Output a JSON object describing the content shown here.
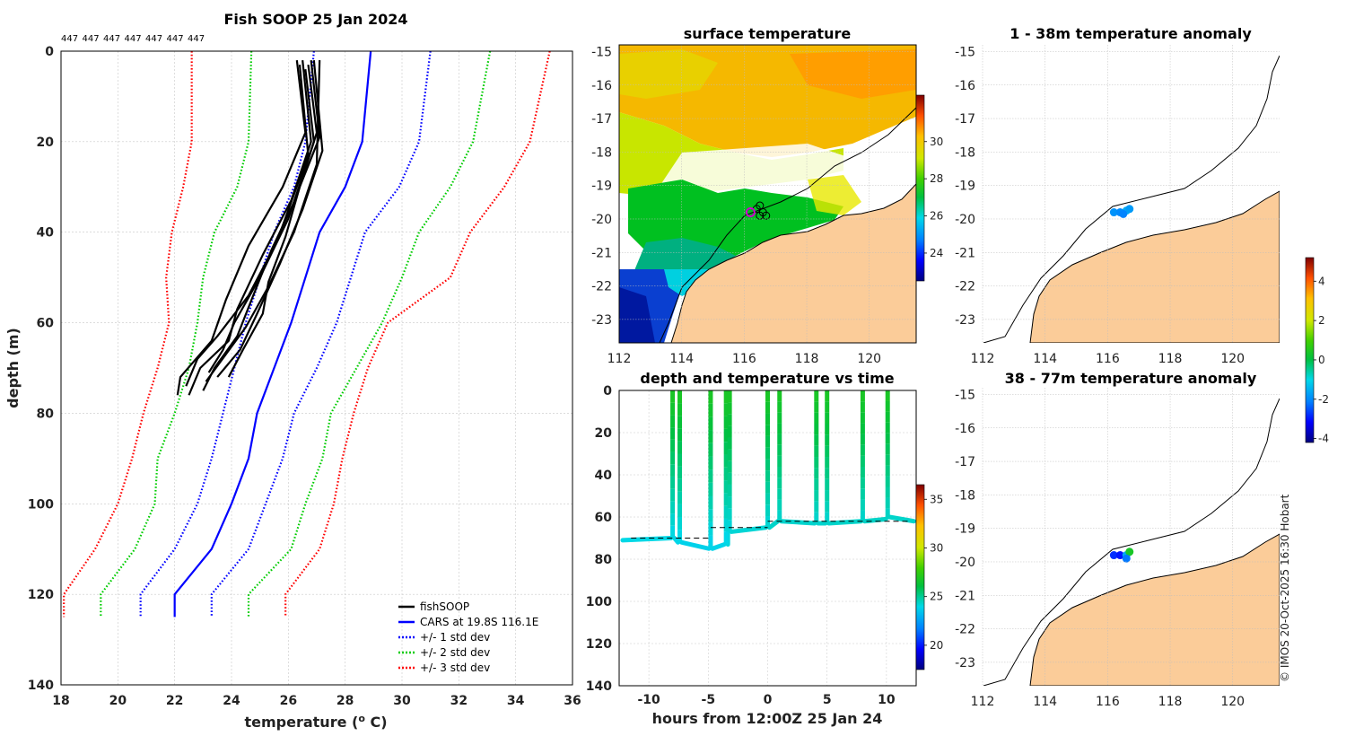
{
  "chart_data": [
    {
      "type": "line",
      "title": "Fish SOOP 25 Jan 2024",
      "top_labels": [
        "447",
        "447",
        "447",
        "447",
        "447",
        "447",
        "447"
      ],
      "xlabel": "temperature (",
      "xlabel_sup": "o",
      "xlabel_end": " C)",
      "ylabel": "depth (m)",
      "xlim": [
        18,
        36
      ],
      "ylim": [
        0,
        140
      ],
      "xticks": [
        18,
        20,
        22,
        24,
        26,
        28,
        30,
        32,
        34,
        36
      ],
      "yticks": [
        0,
        20,
        40,
        60,
        80,
        100,
        120,
        140
      ],
      "depths": [
        0,
        20,
        30,
        40,
        50,
        60,
        70,
        80,
        90,
        100,
        110,
        120,
        125
      ],
      "series": [
        {
          "name": "CARS at 19.8S 116.1E",
          "color": "#0000ff",
          "style": "solid",
          "temps": [
            28.9,
            28.6,
            28.0,
            27.1,
            26.6,
            26.1,
            25.5,
            24.9,
            24.6,
            24.0,
            23.3,
            22.0,
            22.0
          ]
        },
        {
          "name": "+/- 1 std dev",
          "color": "#0000ff",
          "style": "dotted",
          "temps": [
            26.9,
            26.6,
            26.2,
            25.5,
            25.0,
            24.5,
            24.1,
            23.7,
            23.3,
            22.8,
            22.0,
            20.8,
            20.8
          ]
        },
        {
          "name": "+/- 1 std dev",
          "color": "#0000ff",
          "style": "dotted",
          "temps": [
            31.0,
            30.6,
            29.9,
            28.7,
            28.2,
            27.7,
            27.0,
            26.2,
            25.8,
            25.2,
            24.6,
            23.3,
            23.3
          ]
        },
        {
          "name": "+/- 2 std dev",
          "color": "#00cc00",
          "style": "dotted",
          "temps": [
            24.7,
            24.6,
            24.2,
            23.4,
            23.0,
            22.8,
            22.5,
            22.0,
            21.4,
            21.3,
            20.6,
            19.4,
            19.4
          ]
        },
        {
          "name": "+/- 2 std dev",
          "color": "#00cc00",
          "style": "dotted",
          "temps": [
            33.1,
            32.5,
            31.7,
            30.6,
            30.0,
            29.3,
            28.4,
            27.5,
            27.2,
            26.6,
            26.1,
            24.6,
            24.6
          ]
        },
        {
          "name": "+/- 3 std dev",
          "color": "#ff0000",
          "style": "dotted",
          "temps": [
            22.6,
            22.6,
            22.3,
            21.9,
            21.7,
            21.8,
            21.4,
            20.9,
            20.5,
            20.0,
            19.2,
            18.1,
            18.1
          ]
        },
        {
          "name": "+/- 3 std dev",
          "color": "#ff0000",
          "style": "dotted",
          "temps": [
            35.2,
            34.5,
            33.6,
            32.4,
            31.7,
            29.5,
            28.8,
            28.3,
            27.9,
            27.6,
            27.1,
            25.9,
            25.9
          ]
        }
      ],
      "fish_profiles": [
        [
          [
            26.3,
            2
          ],
          [
            26.6,
            18
          ],
          [
            25.8,
            30
          ],
          [
            24.6,
            43
          ],
          [
            23.8,
            55
          ],
          [
            23.3,
            64
          ],
          [
            22.2,
            72
          ],
          [
            22.1,
            76
          ]
        ],
        [
          [
            26.5,
            2
          ],
          [
            26.8,
            20
          ],
          [
            26.1,
            33
          ],
          [
            25.1,
            45
          ],
          [
            24.2,
            57
          ],
          [
            23.9,
            64
          ],
          [
            22.9,
            70
          ],
          [
            22.5,
            76
          ]
        ],
        [
          [
            26.7,
            3
          ],
          [
            27.0,
            18
          ],
          [
            26.3,
            32
          ],
          [
            25.4,
            44
          ],
          [
            24.7,
            55
          ],
          [
            24.2,
            63
          ],
          [
            23.4,
            70
          ],
          [
            23.0,
            75
          ]
        ],
        [
          [
            26.9,
            2
          ],
          [
            27.2,
            22
          ],
          [
            26.5,
            35
          ],
          [
            25.7,
            47
          ],
          [
            24.9,
            58
          ],
          [
            24.3,
            66
          ],
          [
            23.5,
            72
          ]
        ],
        [
          [
            27.1,
            2
          ],
          [
            27.0,
            25
          ],
          [
            26.2,
            40
          ],
          [
            25.3,
            52
          ],
          [
            24.5,
            61
          ],
          [
            23.8,
            67
          ],
          [
            23.1,
            73
          ]
        ],
        [
          [
            26.6,
            4
          ],
          [
            26.9,
            20
          ],
          [
            26.0,
            37
          ],
          [
            25.0,
            50
          ],
          [
            24.1,
            60
          ],
          [
            23.7,
            66
          ],
          [
            23.2,
            71
          ]
        ],
        [
          [
            26.4,
            3
          ],
          [
            26.7,
            23
          ],
          [
            25.6,
            42
          ],
          [
            24.6,
            54
          ],
          [
            23.5,
            63
          ],
          [
            22.8,
            68
          ],
          [
            22.4,
            74
          ]
        ],
        [
          [
            26.8,
            2
          ],
          [
            27.1,
            19
          ],
          [
            26.4,
            30
          ],
          [
            25.9,
            41
          ],
          [
            25.3,
            51
          ],
          [
            25.1,
            58
          ],
          [
            24.4,
            66
          ],
          [
            23.9,
            72
          ]
        ]
      ],
      "legend": [
        "fishSOOP",
        "CARS at 19.8S 116.1E",
        "+/- 1 std dev",
        "+/- 2 std dev",
        "+/- 3 std dev"
      ],
      "legend_colors": [
        "#000000",
        "#0000ff",
        "#0000ff",
        "#00cc00",
        "#ff0000"
      ]
    },
    {
      "type": "heatmap",
      "title": "surface temperature",
      "xlim": [
        112,
        121.5
      ],
      "ylim": [
        -23.7,
        -14.8
      ],
      "xticks": [
        112,
        114,
        116,
        118,
        120
      ],
      "yticks": [
        -15,
        -16,
        -17,
        -18,
        -19,
        -20,
        -21,
        -22,
        -23
      ],
      "colorbar": {
        "min": 22.5,
        "max": 32.5,
        "ticks": [
          24,
          26,
          28,
          30
        ]
      },
      "vessel_track": [
        [
          116.2,
          -19.8
        ],
        [
          116.4,
          -19.7
        ],
        [
          116.5,
          -19.6
        ],
        [
          116.6,
          -19.8
        ],
        [
          116.7,
          -19.9
        ],
        [
          116.5,
          -19.9
        ]
      ]
    },
    {
      "type": "scatter",
      "title": "depth and temperature vs time",
      "xlabel": "hours from 12:00Z 25 Jan 24",
      "xlim": [
        -12.5,
        12.5
      ],
      "ylim": [
        0,
        140
      ],
      "xticks": [
        -10,
        -5,
        0,
        5,
        10
      ],
      "yticks": [
        0,
        20,
        40,
        60,
        80,
        100,
        120,
        140
      ],
      "colorbar": {
        "min": 17.5,
        "max": 36.5,
        "ticks": [
          20,
          25,
          30,
          35
        ]
      },
      "bottom_dashes": [
        [
          -11.5,
          -4.8,
          70
        ],
        [
          -4.8,
          0,
          65
        ],
        [
          0,
          12,
          62
        ]
      ],
      "dive_times": [
        -8.0,
        -7.4,
        -4.8,
        -3.5,
        -3.2,
        0,
        1.0,
        4.1,
        5.0,
        8.0,
        10.1
      ],
      "bottom_depths": [
        70,
        72,
        75,
        73,
        67,
        65,
        62,
        63,
        63,
        62,
        61
      ]
    },
    {
      "type": "scatter",
      "title": "1 - 38m temperature anomaly",
      "xlim": [
        112,
        121.5
      ],
      "ylim": [
        -23.7,
        -14.8
      ],
      "xticks": [
        112,
        114,
        116,
        118,
        120
      ],
      "yticks": [
        -15,
        -16,
        -17,
        -18,
        -19,
        -20,
        -21,
        -22,
        -23
      ],
      "points": [
        [
          116.2,
          -19.8,
          -1.9
        ],
        [
          116.4,
          -19.8,
          -2.0
        ],
        [
          116.6,
          -19.75,
          -1.6
        ],
        [
          116.7,
          -19.7,
          -1.8
        ],
        [
          116.5,
          -19.85,
          -2.1
        ]
      ]
    },
    {
      "type": "scatter",
      "title": "38 - 77m temperature anomaly",
      "xlim": [
        112,
        121.5
      ],
      "ylim": [
        -23.7,
        -14.8
      ],
      "xticks": [
        112,
        114,
        116,
        118,
        120
      ],
      "yticks": [
        -15,
        -16,
        -17,
        -18,
        -19,
        -20,
        -21,
        -22,
        -23
      ],
      "points": [
        [
          116.2,
          -19.8,
          -2.8
        ],
        [
          116.4,
          -19.8,
          -3.0
        ],
        [
          116.6,
          -19.8,
          -1.6
        ],
        [
          116.7,
          -19.7,
          0.4
        ],
        [
          116.6,
          -19.9,
          -2.2
        ]
      ],
      "colorbar": {
        "min": -4.2,
        "max": 5.2,
        "ticks": [
          -4,
          -2,
          0,
          2,
          4
        ]
      }
    }
  ],
  "credit": "© IMOS 20-Oct-2025 16:30 Hobart"
}
